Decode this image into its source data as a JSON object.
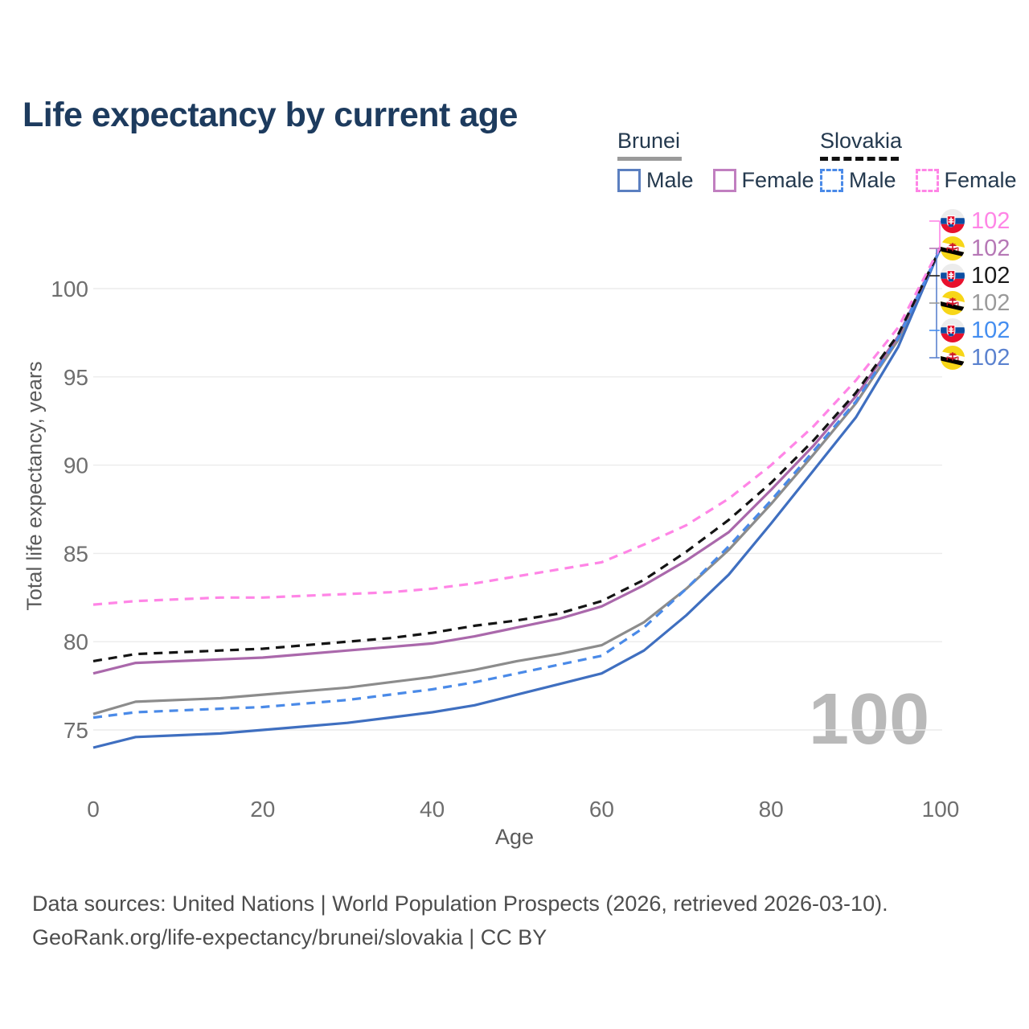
{
  "title": "Life expectancy by current age",
  "legend": {
    "groups": [
      {
        "label": "Brunei",
        "underline": "solid",
        "items": [
          {
            "label": "Male",
            "color": "#5b7fc0",
            "dashed": false
          },
          {
            "label": "Female",
            "color": "#c17fc0",
            "dashed": false
          }
        ]
      },
      {
        "label": "Slovakia",
        "underline": "dashed",
        "items": [
          {
            "label": "Male",
            "color": "#4a8ae8",
            "dashed": true
          },
          {
            "label": "Female",
            "color": "#ff85e6",
            "dashed": true
          }
        ]
      }
    ]
  },
  "watermark": {
    "text": "100",
    "color": "#b9b9b9"
  },
  "end_labels": {
    "rows": [
      {
        "value": "102",
        "flag": "slovakia",
        "color": "#ff85e6"
      },
      {
        "value": "102",
        "flag": "brunei",
        "color": "#b678b6"
      },
      {
        "value": "102",
        "flag": "slovakia",
        "color": "#1a1a1a"
      },
      {
        "value": "102",
        "flag": "brunei",
        "color": "#9a9a9a"
      },
      {
        "value": "102",
        "flag": "slovakia",
        "color": "#448ef0"
      },
      {
        "value": "102",
        "flag": "brunei",
        "color": "#5b82cf"
      }
    ]
  },
  "footer": {
    "line1": "Data sources: United Nations | World Population Prospects (2026, retrieved 2026-03-10).",
    "line2": "GeoRank.org/life-expectancy/brunei/slovakia | CC BY"
  },
  "chart_data": {
    "type": "line",
    "title": "Life expectancy by current age",
    "xlabel": "Age",
    "ylabel": "Total life expectancy, years",
    "x_ticks": [
      0,
      20,
      40,
      60,
      80,
      100
    ],
    "y_ticks": [
      75,
      80,
      85,
      90,
      95,
      100
    ],
    "xlim": [
      0,
      100
    ],
    "ylim": [
      73,
      103
    ],
    "grid": "horizontal",
    "legend_position": "top-right",
    "x": [
      0,
      5,
      10,
      15,
      20,
      25,
      30,
      35,
      40,
      45,
      50,
      55,
      60,
      65,
      70,
      75,
      80,
      85,
      90,
      95,
      100
    ],
    "series": [
      {
        "name": "Brunei (both sexes)",
        "country": "Brunei",
        "sex": "Both",
        "color": "#8c8c8c",
        "style": "solid",
        "values": [
          75.9,
          76.6,
          76.7,
          76.8,
          77.0,
          77.2,
          77.4,
          77.7,
          78.0,
          78.4,
          78.9,
          79.3,
          79.8,
          81.1,
          83.0,
          85.2,
          87.8,
          90.6,
          93.5,
          97.1,
          102.3
        ]
      },
      {
        "name": "Brunei Male",
        "country": "Brunei",
        "sex": "Male",
        "color": "#3f6fc0",
        "style": "solid",
        "values": [
          74.0,
          74.6,
          74.7,
          74.8,
          75.0,
          75.2,
          75.4,
          75.7,
          76.0,
          76.4,
          77.0,
          77.6,
          78.2,
          79.5,
          81.5,
          83.8,
          86.7,
          89.7,
          92.7,
          96.7,
          102.3
        ]
      },
      {
        "name": "Brunei Female",
        "country": "Brunei",
        "sex": "Female",
        "color": "#aa68ab",
        "style": "solid",
        "values": [
          78.2,
          78.8,
          78.9,
          79.0,
          79.1,
          79.3,
          79.5,
          79.7,
          79.9,
          80.3,
          80.8,
          81.3,
          82.0,
          83.2,
          84.6,
          86.2,
          88.6,
          91.1,
          93.9,
          97.3,
          102.3
        ]
      },
      {
        "name": "Slovakia Male",
        "country": "Slovakia",
        "sex": "Male",
        "color": "#4a8ae8",
        "style": "dashed",
        "values": [
          75.7,
          76.0,
          76.1,
          76.2,
          76.3,
          76.5,
          76.7,
          77.0,
          77.3,
          77.7,
          78.2,
          78.7,
          79.2,
          80.8,
          83.0,
          85.4,
          88.0,
          90.8,
          93.6,
          97.2,
          102.3
        ]
      },
      {
        "name": "Slovakia (both sexes)",
        "country": "Slovakia",
        "sex": "Both",
        "color": "#141414",
        "style": "dashed",
        "values": [
          78.9,
          79.3,
          79.4,
          79.5,
          79.6,
          79.8,
          80.0,
          80.2,
          80.5,
          80.9,
          81.2,
          81.6,
          82.3,
          83.5,
          85.1,
          86.9,
          89.0,
          91.4,
          94.1,
          97.4,
          102.3
        ]
      },
      {
        "name": "Slovakia Female",
        "country": "Slovakia",
        "sex": "Female",
        "color": "#ff85e6",
        "style": "dashed",
        "values": [
          82.1,
          82.3,
          82.4,
          82.5,
          82.5,
          82.6,
          82.7,
          82.8,
          83.0,
          83.3,
          83.7,
          84.1,
          84.5,
          85.5,
          86.6,
          88.1,
          90.0,
          92.2,
          94.8,
          97.8,
          102.4
        ]
      }
    ],
    "end_value_label": "102"
  }
}
